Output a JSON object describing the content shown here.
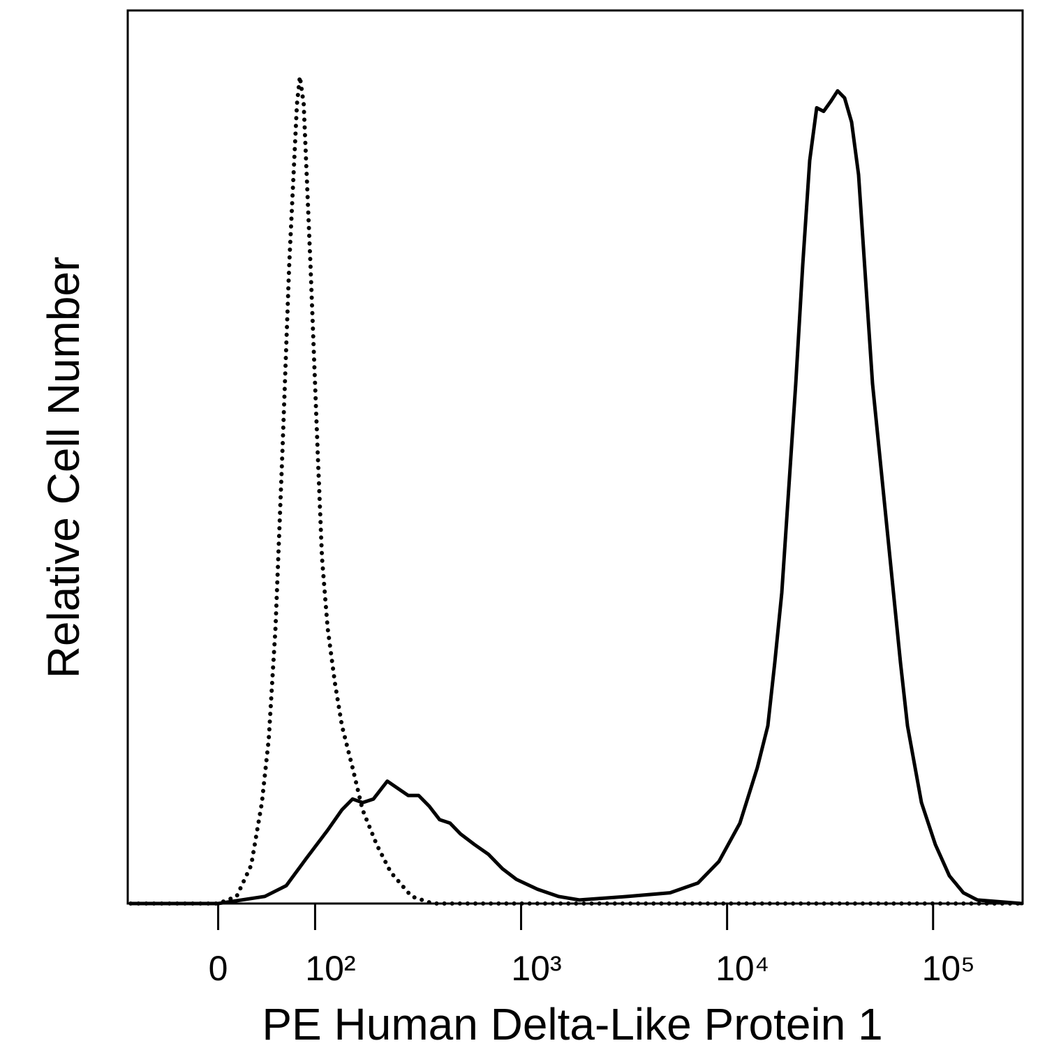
{
  "chart_data": {
    "type": "line",
    "xlabel": "PE Human Delta-Like Protein 1",
    "ylabel": "Relative Cell Number",
    "xscale": "biexponential",
    "xlim": [
      -93,
      272000
    ],
    "xticks": [
      0,
      {
        "value": 100,
        "label": "10²"
      },
      {
        "value": 1000,
        "label": "10³"
      },
      {
        "value": 10000,
        "label": "10⁴"
      },
      {
        "value": 100000,
        "label": "10⁵"
      }
    ],
    "ylim": [
      0,
      100
    ],
    "series": [
      {
        "color": "#000000",
        "line_style": "dotted",
        "x": [
          -90,
          0,
          19,
          34,
          45,
          52,
          59,
          66,
          73,
          81,
          84,
          88,
          95,
          103,
          108,
          115,
          125,
          135,
          152,
          170,
          199,
          233,
          294,
          373,
          270000
        ],
        "values": [
          0,
          0,
          0.8,
          4.3,
          11.3,
          18.4,
          30.9,
          50.4,
          71.5,
          89.5,
          92.6,
          89.5,
          71.5,
          50.4,
          38.7,
          30.9,
          24.6,
          19.9,
          15.2,
          10.5,
          6.6,
          3.5,
          0.8,
          0,
          0
        ]
      },
      {
        "color": "#000000",
        "line_style": "solid",
        "x": [
          -90,
          0,
          48,
          70,
          91,
          115,
          135,
          152,
          170,
          192,
          224,
          252,
          283,
          318,
          358,
          402,
          452,
          508,
          594,
          695,
          812,
          949,
          1200,
          1516,
          1916,
          3309,
          5285,
          7222,
          9127,
          11540,
          14020,
          15770,
          17050,
          18430,
          19930,
          21550,
          23290,
          25180,
          27220,
          29440,
          31820,
          34410,
          37200,
          40210,
          43480,
          47010,
          50830,
          54960,
          59420,
          64240,
          69460,
          75100,
          87790,
          102600,
          120000,
          140300,
          164000,
          270000
        ],
        "values": [
          0,
          0,
          0.8,
          2.0,
          5.1,
          8.2,
          10.5,
          11.7,
          11.3,
          11.7,
          13.7,
          12.9,
          12.1,
          12.1,
          10.9,
          9.4,
          9.0,
          7.8,
          6.6,
          5.5,
          3.9,
          2.7,
          1.6,
          0.8,
          0.4,
          0.8,
          1.2,
          2.3,
          4.7,
          9.0,
          15.2,
          19.9,
          27.0,
          34.8,
          46.5,
          58.2,
          71.5,
          83.2,
          89.1,
          88.7,
          89.8,
          91.0,
          90.2,
          87.5,
          81.6,
          69.9,
          58.2,
          50.4,
          42.6,
          34.8,
          27.0,
          19.9,
          11.3,
          6.6,
          3.1,
          1.2,
          0.4,
          0
        ]
      }
    ]
  }
}
